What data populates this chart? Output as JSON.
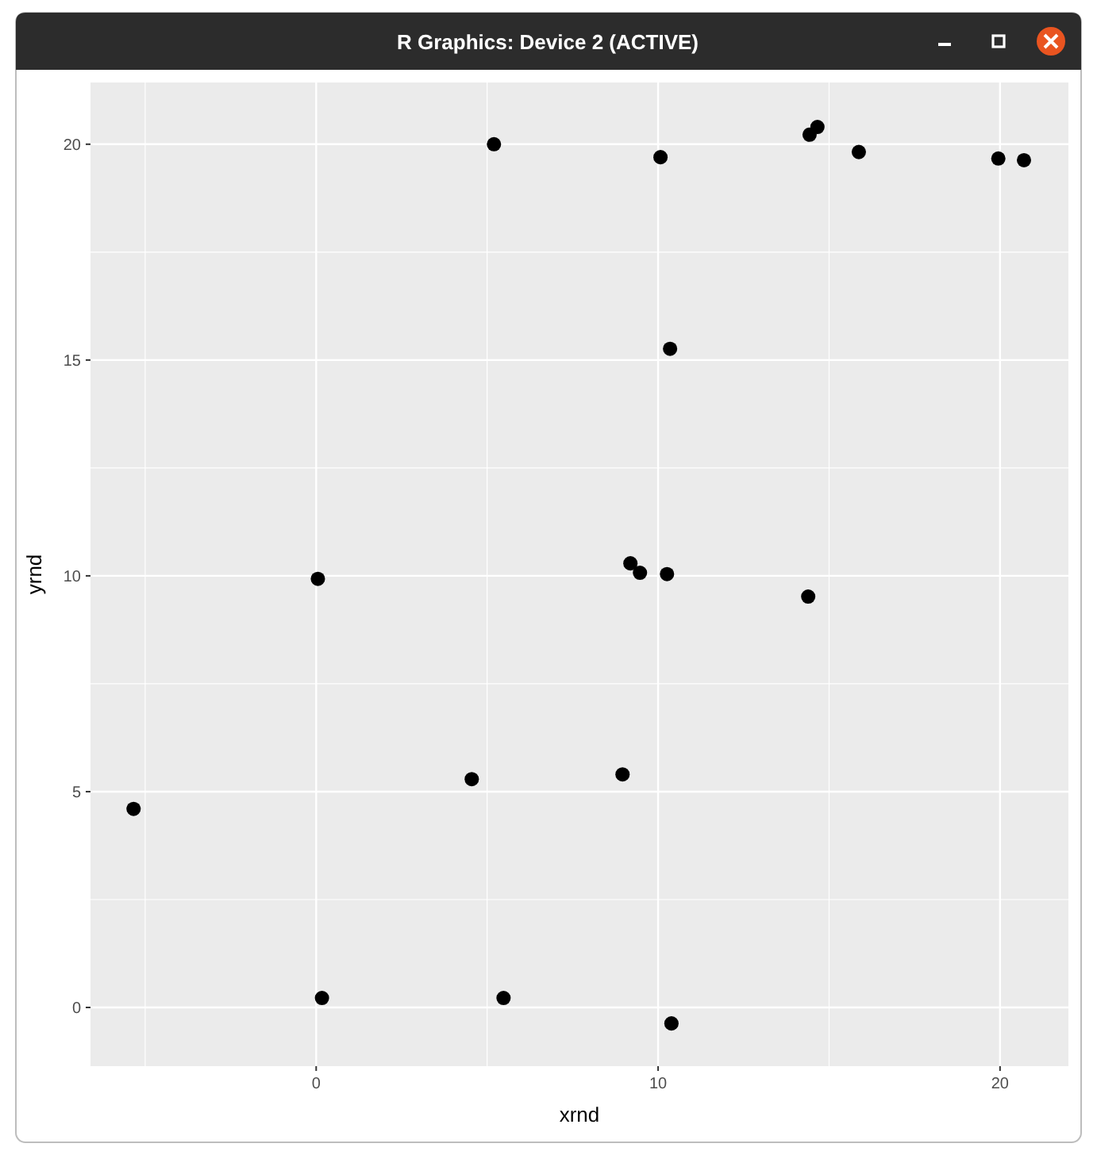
{
  "chart_data": {
    "type": "scatter",
    "title": "R Graphics: Device 2 (ACTIVE)",
    "xlabel": "xrnd",
    "ylabel": "yrnd",
    "x": [
      -5.34,
      0.05,
      0.17,
      4.55,
      5.2,
      5.48,
      8.96,
      9.19,
      9.47,
      10.07,
      10.26,
      10.35,
      10.39,
      14.39,
      14.43,
      14.66,
      15.87,
      19.95,
      20.7
    ],
    "series": [
      {
        "color": "#000000",
        "values": [
          4.6,
          9.93,
          0.22,
          5.29,
          20.0,
          0.22,
          5.4,
          10.29,
          10.07,
          19.7,
          10.04,
          15.26,
          -0.37,
          9.52,
          20.22,
          20.4,
          19.82,
          19.67,
          19.63
        ]
      }
    ],
    "xlim": [
      -6.6,
      22
    ],
    "ylim": [
      -1.36,
      21.43
    ],
    "xticks": [
      0,
      10,
      20
    ],
    "yticks": [
      0,
      5,
      10,
      15,
      20
    ],
    "grid": true,
    "marker": "circle"
  }
}
